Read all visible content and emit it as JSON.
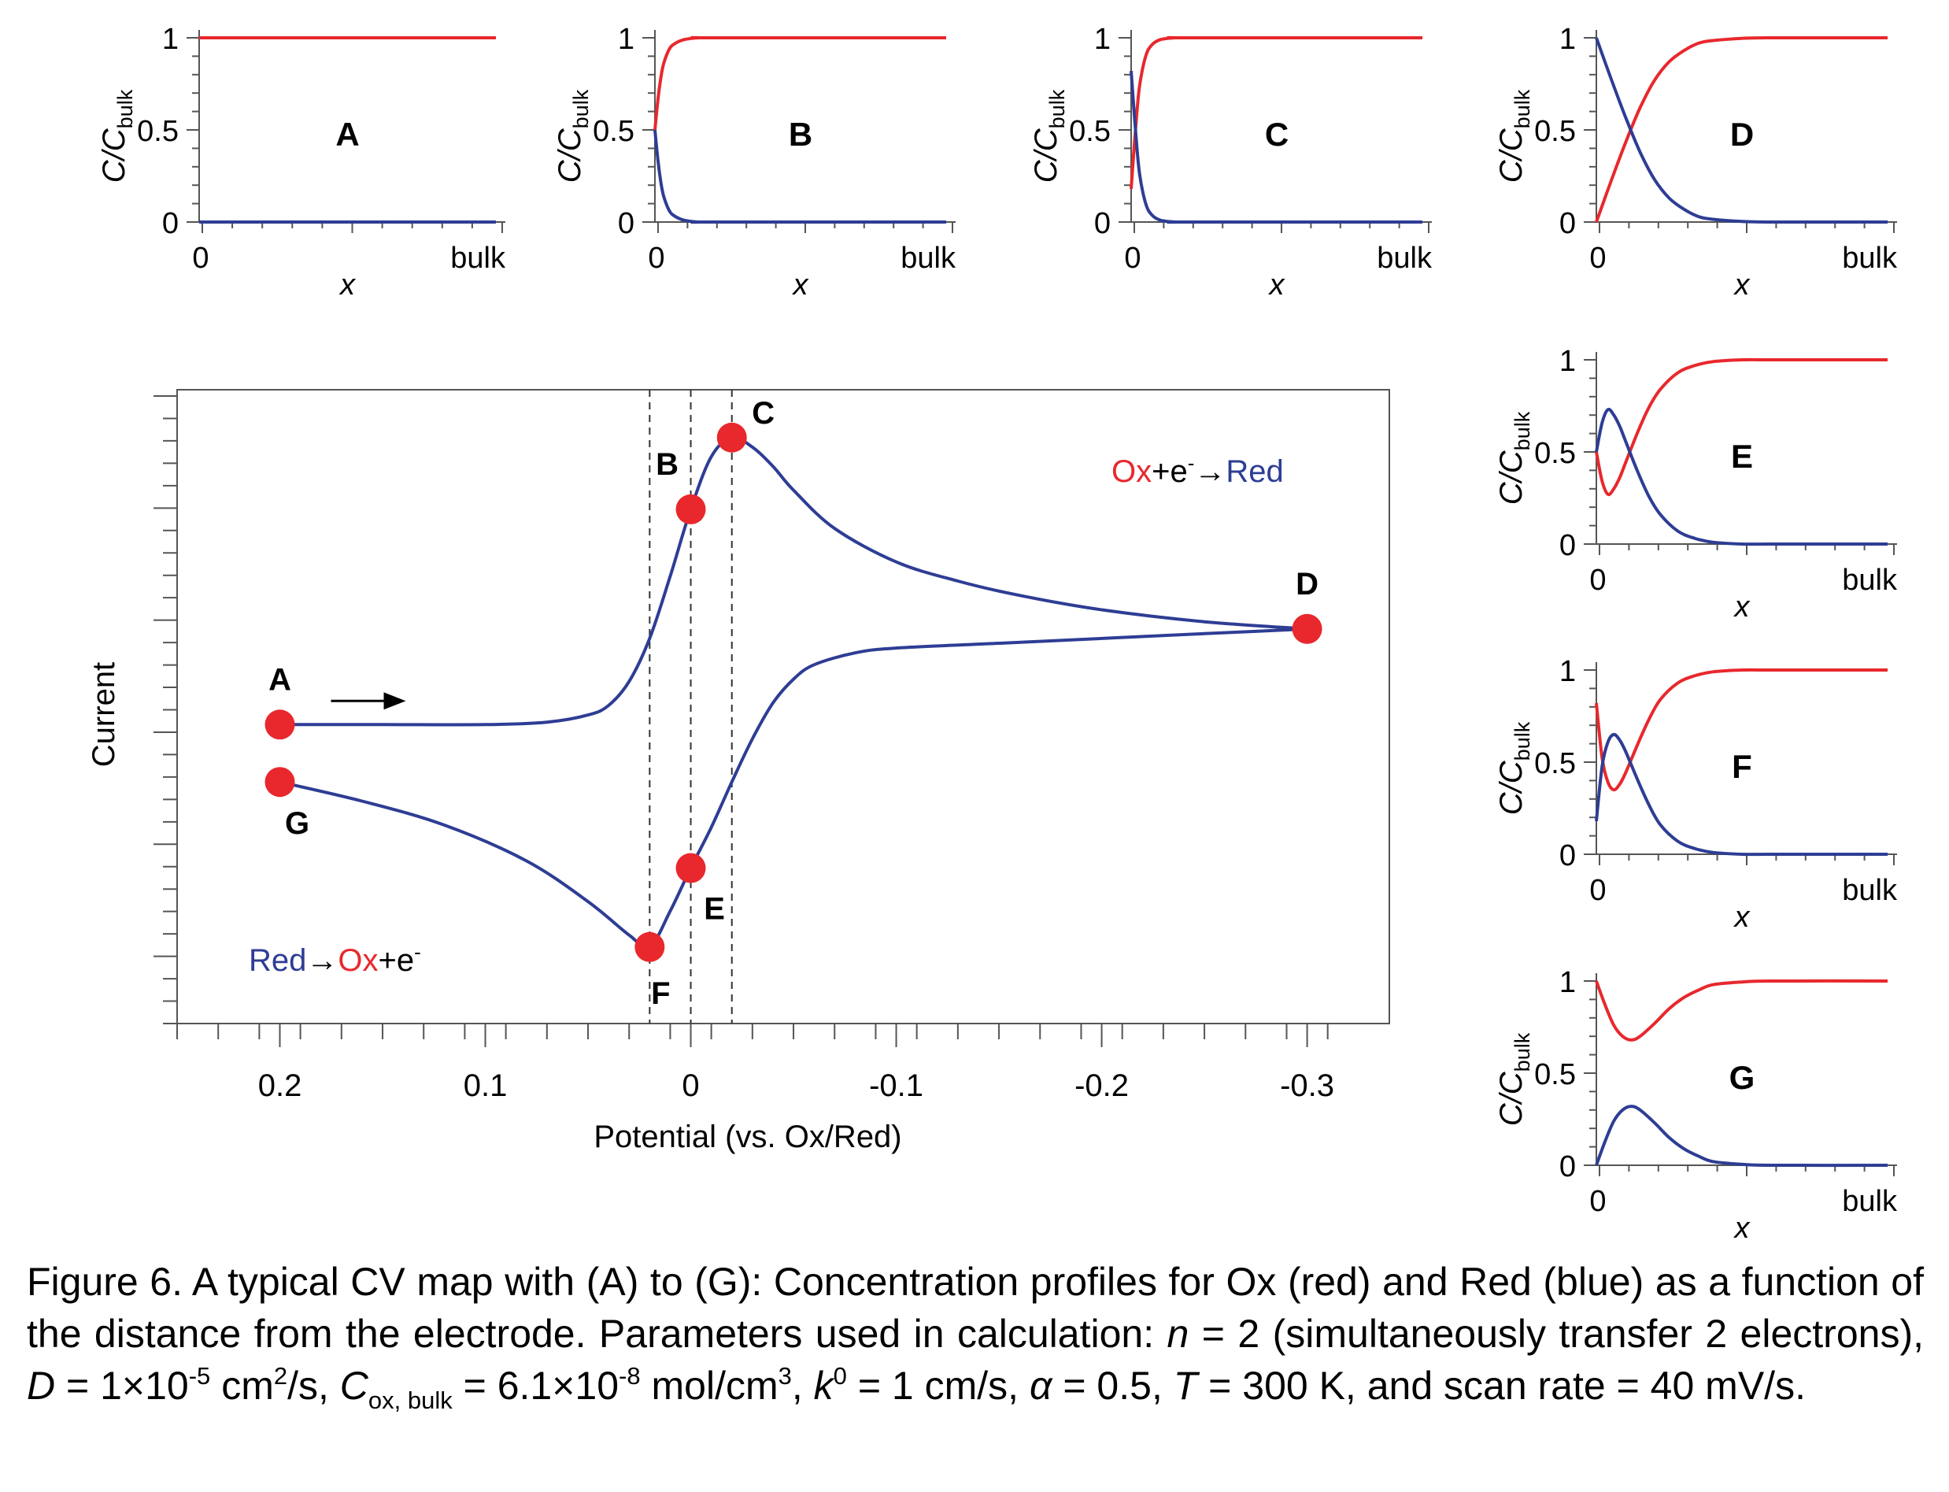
{
  "colors": {
    "ox": "#e8282d",
    "red": "#2e3d94",
    "axis": "#555555",
    "guide": "#333333"
  },
  "chart_data": [
    {
      "type": "line",
      "id": "cv",
      "xlabel": "Potential (vs. Ox/Red)",
      "ylabel": "Current",
      "x_axis_reversed": true,
      "xlim": [
        0.25,
        -0.34
      ],
      "xticks": [
        "0.2",
        "0.1",
        "0",
        "-0.1",
        "-0.2",
        "-0.3"
      ],
      "xtick_values": [
        0.2,
        0.1,
        0,
        -0.1,
        -0.2,
        -0.3
      ],
      "ylim": [
        -1.25,
        1.4
      ],
      "y_tick_labels": "none",
      "reactions": {
        "forward": {
          "ox": "Ox",
          "mid": "+e",
          "sup": "-",
          "arrow": "→",
          "red": "Red"
        },
        "reverse": {
          "red": "Red",
          "arrow": "→",
          "ox": "Ox",
          "mid": "+e",
          "sup": "-"
        }
      },
      "scan_arrow": "right",
      "guide_lines_x": [
        0.02,
        0.0,
        -0.02
      ],
      "points": [
        {
          "label": "A",
          "x": 0.2,
          "y": 0.0,
          "label_pos": "above"
        },
        {
          "label": "B",
          "x": 0.0,
          "y": 0.9,
          "label_pos": "above-left"
        },
        {
          "label": "C",
          "x": -0.02,
          "y": 1.2,
          "label_pos": "upper-right"
        },
        {
          "label": "D",
          "x": -0.3,
          "y": 0.4,
          "label_pos": "above"
        },
        {
          "label": "E",
          "x": 0.0,
          "y": -0.6,
          "label_pos": "below-right"
        },
        {
          "label": "F",
          "x": 0.02,
          "y": -0.93,
          "label_pos": "below"
        },
        {
          "label": "G",
          "x": 0.2,
          "y": -0.24,
          "label_pos": "below"
        }
      ],
      "series": [
        {
          "color": "#2e3d94",
          "x": [
            0.2,
            0.15,
            0.1,
            0.07,
            0.05,
            0.04,
            0.03,
            0.02,
            0.01,
            0.0,
            -0.01,
            -0.02,
            -0.03,
            -0.04,
            -0.05,
            -0.07,
            -0.1,
            -0.13,
            -0.16,
            -0.2,
            -0.25,
            -0.3
          ],
          "y": [
            0.0,
            0.0,
            0.0,
            0.01,
            0.04,
            0.08,
            0.18,
            0.36,
            0.62,
            0.9,
            1.12,
            1.2,
            1.16,
            1.08,
            0.98,
            0.82,
            0.68,
            0.6,
            0.54,
            0.48,
            0.43,
            0.4
          ]
        },
        {
          "color": "#2e3d94",
          "x": [
            -0.3,
            -0.25,
            -0.2,
            -0.15,
            -0.1,
            -0.08,
            -0.06,
            -0.05,
            -0.04,
            -0.03,
            -0.02,
            -0.01,
            0.0,
            0.01,
            0.02,
            0.03,
            0.05,
            0.08,
            0.12,
            0.16,
            0.2
          ],
          "y": [
            0.4,
            0.38,
            0.36,
            0.34,
            0.32,
            0.3,
            0.25,
            0.19,
            0.09,
            -0.06,
            -0.24,
            -0.43,
            -0.6,
            -0.78,
            -0.93,
            -0.88,
            -0.74,
            -0.57,
            -0.42,
            -0.32,
            -0.24
          ]
        }
      ]
    },
    {
      "type": "line",
      "id": "profile-A",
      "panel_label": "A",
      "xlabel": "x",
      "ylabel": "C/C",
      "ylabel_sub": "bulk",
      "xticks": [
        "0",
        "bulk"
      ],
      "yticks": [
        "0",
        "0.5",
        "1"
      ],
      "ylim": [
        0,
        1
      ],
      "x": [
        0,
        0.5,
        1
      ],
      "series": [
        {
          "color": "#e8282d",
          "values": [
            1,
            1,
            1
          ]
        },
        {
          "color": "#2e3d94",
          "values": [
            0,
            0,
            0
          ]
        }
      ]
    },
    {
      "type": "line",
      "id": "profile-B",
      "panel_label": "B",
      "xlabel": "x",
      "ylabel": "C/C",
      "ylabel_sub": "bulk",
      "xticks": [
        "0",
        "bulk"
      ],
      "yticks": [
        "0",
        "0.5",
        "1"
      ],
      "ylim": [
        0,
        1
      ],
      "x": [
        0,
        0.01,
        0.02,
        0.03,
        0.05,
        0.07,
        0.1,
        0.15,
        0.2,
        1
      ],
      "series": [
        {
          "color": "#e8282d",
          "values": [
            0.5,
            0.66,
            0.78,
            0.86,
            0.94,
            0.97,
            0.99,
            1,
            1,
            1
          ]
        },
        {
          "color": "#2e3d94",
          "values": [
            0.5,
            0.34,
            0.22,
            0.14,
            0.06,
            0.03,
            0.01,
            0,
            0,
            0
          ]
        }
      ]
    },
    {
      "type": "line",
      "id": "profile-C",
      "panel_label": "C",
      "xlabel": "x",
      "ylabel": "C/C",
      "ylabel_sub": "bulk",
      "xticks": [
        "0",
        "bulk"
      ],
      "yticks": [
        "0",
        "0.5",
        "1"
      ],
      "ylim": [
        0,
        1
      ],
      "x": [
        0,
        0.01,
        0.02,
        0.03,
        0.05,
        0.07,
        0.1,
        0.15,
        0.2,
        1
      ],
      "series": [
        {
          "color": "#e8282d",
          "values": [
            0.18,
            0.4,
            0.6,
            0.75,
            0.9,
            0.96,
            0.99,
            1,
            1,
            1
          ]
        },
        {
          "color": "#2e3d94",
          "values": [
            0.82,
            0.6,
            0.4,
            0.25,
            0.1,
            0.04,
            0.01,
            0,
            0,
            0
          ]
        }
      ]
    },
    {
      "type": "line",
      "id": "profile-D",
      "panel_label": "D",
      "xlabel": "x",
      "ylabel": "C/C",
      "ylabel_sub": "bulk",
      "xticks": [
        "0",
        "bulk"
      ],
      "yticks": [
        "0",
        "0.5",
        "1"
      ],
      "ylim": [
        0,
        1
      ],
      "x": [
        0,
        0.05,
        0.1,
        0.15,
        0.2,
        0.25,
        0.3,
        0.35,
        0.4,
        0.5,
        0.6,
        0.7,
        1
      ],
      "series": [
        {
          "color": "#e8282d",
          "values": [
            0,
            0.22,
            0.43,
            0.62,
            0.77,
            0.87,
            0.93,
            0.97,
            0.985,
            0.997,
            1,
            1,
            1
          ]
        },
        {
          "color": "#2e3d94",
          "values": [
            1,
            0.78,
            0.57,
            0.38,
            0.23,
            0.13,
            0.07,
            0.03,
            0.015,
            0.003,
            0,
            0,
            0
          ]
        }
      ]
    },
    {
      "type": "line",
      "id": "profile-E",
      "panel_label": "E",
      "xlabel": "x",
      "ylabel": "C/C",
      "ylabel_sub": "bulk",
      "xticks": [
        "0",
        "bulk"
      ],
      "yticks": [
        "0",
        "0.5",
        "1"
      ],
      "ylim": [
        0,
        1
      ],
      "x": [
        0,
        0.02,
        0.04,
        0.06,
        0.08,
        0.1,
        0.14,
        0.18,
        0.22,
        0.28,
        0.34,
        0.4,
        0.5,
        0.6,
        1
      ],
      "series": [
        {
          "color": "#e8282d",
          "values": [
            0.5,
            0.34,
            0.27,
            0.3,
            0.36,
            0.44,
            0.6,
            0.74,
            0.84,
            0.93,
            0.97,
            0.99,
            1,
            1,
            1
          ]
        },
        {
          "color": "#2e3d94",
          "values": [
            0.5,
            0.66,
            0.73,
            0.7,
            0.64,
            0.56,
            0.4,
            0.26,
            0.16,
            0.07,
            0.03,
            0.01,
            0,
            0,
            0
          ]
        }
      ]
    },
    {
      "type": "line",
      "id": "profile-F",
      "panel_label": "F",
      "xlabel": "x",
      "ylabel": "C/C",
      "ylabel_sub": "bulk",
      "xticks": [
        "0",
        "bulk"
      ],
      "yticks": [
        "0",
        "0.5",
        "1"
      ],
      "ylim": [
        0,
        1
      ],
      "x": [
        0,
        0.02,
        0.04,
        0.06,
        0.08,
        0.1,
        0.14,
        0.18,
        0.22,
        0.28,
        0.34,
        0.4,
        0.5,
        0.6,
        1
      ],
      "series": [
        {
          "color": "#e8282d",
          "values": [
            0.82,
            0.52,
            0.39,
            0.35,
            0.38,
            0.44,
            0.59,
            0.73,
            0.84,
            0.93,
            0.97,
            0.99,
            1,
            1,
            1
          ]
        },
        {
          "color": "#2e3d94",
          "values": [
            0.18,
            0.48,
            0.61,
            0.65,
            0.62,
            0.56,
            0.41,
            0.27,
            0.16,
            0.07,
            0.03,
            0.01,
            0,
            0,
            0
          ]
        }
      ]
    },
    {
      "type": "line",
      "id": "profile-G",
      "panel_label": "G",
      "xlabel": "x",
      "ylabel": "C/C",
      "ylabel_sub": "bulk",
      "xticks": [
        "0",
        "bulk"
      ],
      "yticks": [
        "0",
        "0.5",
        "1"
      ],
      "ylim": [
        0,
        1
      ],
      "x": [
        0,
        0.03,
        0.06,
        0.09,
        0.12,
        0.15,
        0.2,
        0.25,
        0.3,
        0.35,
        0.4,
        0.5,
        0.6,
        1
      ],
      "series": [
        {
          "color": "#e8282d",
          "values": [
            1,
            0.87,
            0.76,
            0.7,
            0.68,
            0.7,
            0.77,
            0.85,
            0.91,
            0.95,
            0.98,
            0.995,
            1,
            1
          ]
        },
        {
          "color": "#2e3d94",
          "values": [
            0,
            0.13,
            0.24,
            0.3,
            0.32,
            0.3,
            0.23,
            0.15,
            0.09,
            0.05,
            0.02,
            0.005,
            0,
            0
          ]
        }
      ]
    }
  ],
  "caption": {
    "p1": "Figure 6. A typical CV map with (A) to (G): Concentration profiles for Ox (red) and Red (blue) as a function of the distance from the electrode. Parameters used in calculation: ",
    "n_sym": "n",
    "p2": " = 2 (simultaneously transfer 2 electrons), ",
    "D_sym": "D",
    "p3": " = 1×10",
    "D_exp": "-5",
    "p4": " cm",
    "cm_exp": "2",
    "p5": "/s, ",
    "C_sym": "C",
    "C_sub": "ox, bulk",
    "p6": " = 6.1×10",
    "C_exp": "-8",
    "p7": " mol/cm",
    "mol_exp": "3",
    "p8": ", ",
    "k_sym": "k",
    "k_sup": "0",
    "p9": " = 1 cm/s, ",
    "alpha_sym": "α",
    "p10": " = 0.5, ",
    "T_sym": "T",
    "p11": " = 300 K, and scan rate = 40 mV/s."
  }
}
